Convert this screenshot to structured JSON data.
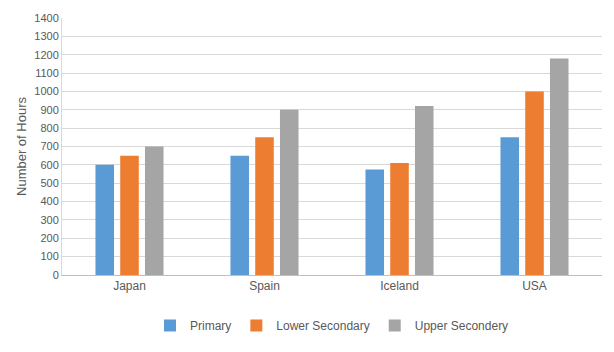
{
  "chart_data": {
    "type": "bar",
    "y_label": "Number of Hours",
    "categories": [
      "Japan",
      "Spain",
      "Iceland",
      "USA"
    ],
    "series": [
      {
        "name": "Primary",
        "color": "#5B9BD5",
        "values": [
          600,
          650,
          575,
          750
        ]
      },
      {
        "name": "Lower Secondary",
        "color": "#ED7D31",
        "values": [
          650,
          750,
          610,
          1000
        ]
      },
      {
        "name": "Upper Secondery",
        "color": "#A5A5A5",
        "values": [
          700,
          900,
          920,
          1180
        ]
      }
    ],
    "ylim": [
      0,
      1400
    ],
    "yticks": [
      0,
      100,
      200,
      300,
      400,
      500,
      600,
      700,
      800,
      900,
      1000,
      1100,
      1200,
      1300,
      1400
    ],
    "grid": true,
    "legend": "bottom"
  }
}
